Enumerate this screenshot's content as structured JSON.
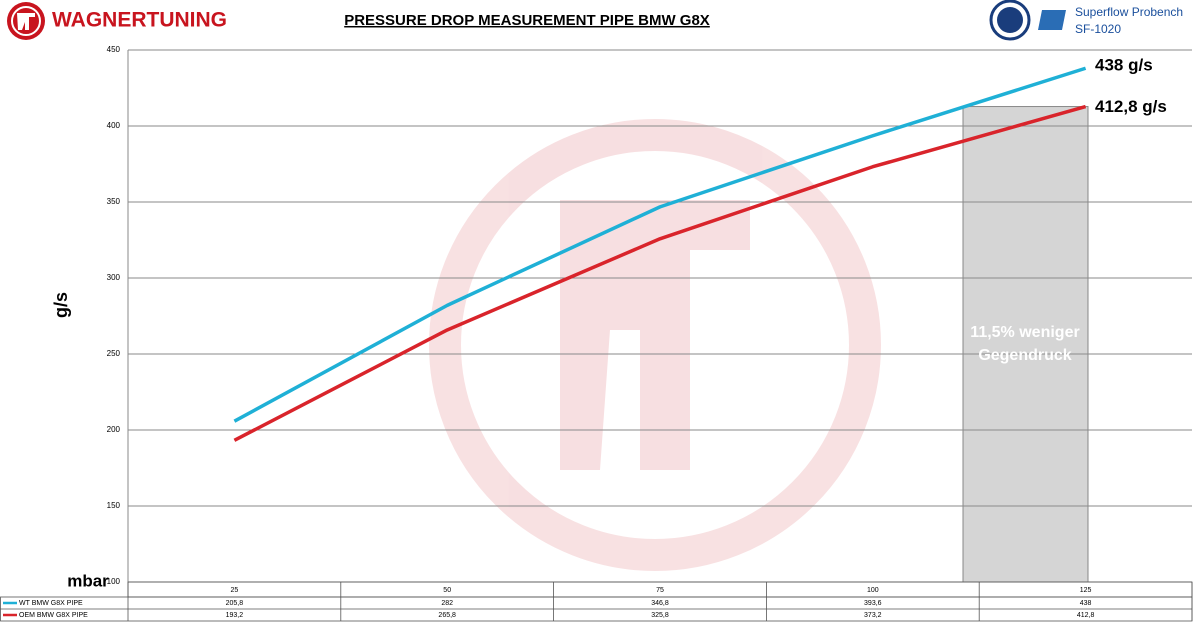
{
  "header": {
    "brand": "WAGNERTUNING",
    "bench": [
      "Superflow Probench",
      "SF-1020"
    ]
  },
  "chart_data": {
    "type": "line",
    "title": "PRESSURE DROP MEASUREMENT PIPE BMW G8X",
    "y_label": "g/s",
    "x_label": "mbar",
    "categories": [
      "25",
      "50",
      "75",
      "100",
      "125"
    ],
    "series": [
      {
        "name": "WT BMW G8X PIPE",
        "color": "#1fb0d6",
        "values": [
          205.8,
          282,
          346.8,
          393.6,
          438
        ],
        "value_labels": [
          "205,8",
          "282",
          "346,8",
          "393,6",
          "438"
        ]
      },
      {
        "name": "OEM BMW G8X PIPE",
        "color": "#d9242b",
        "values": [
          193.2,
          265.8,
          325.8,
          373.2,
          412.8
        ],
        "value_labels": [
          "193,2",
          "265,8",
          "325,8",
          "373,2",
          "412,8"
        ]
      }
    ],
    "annotations": [
      "438 g/s",
      "412,8 g/s",
      "11,5% weniger",
      "Gegendruck"
    ],
    "ylim": [
      100,
      450
    ],
    "yticks": [
      100,
      150,
      200,
      250,
      300,
      350,
      400,
      450
    ],
    "grid": true
  }
}
